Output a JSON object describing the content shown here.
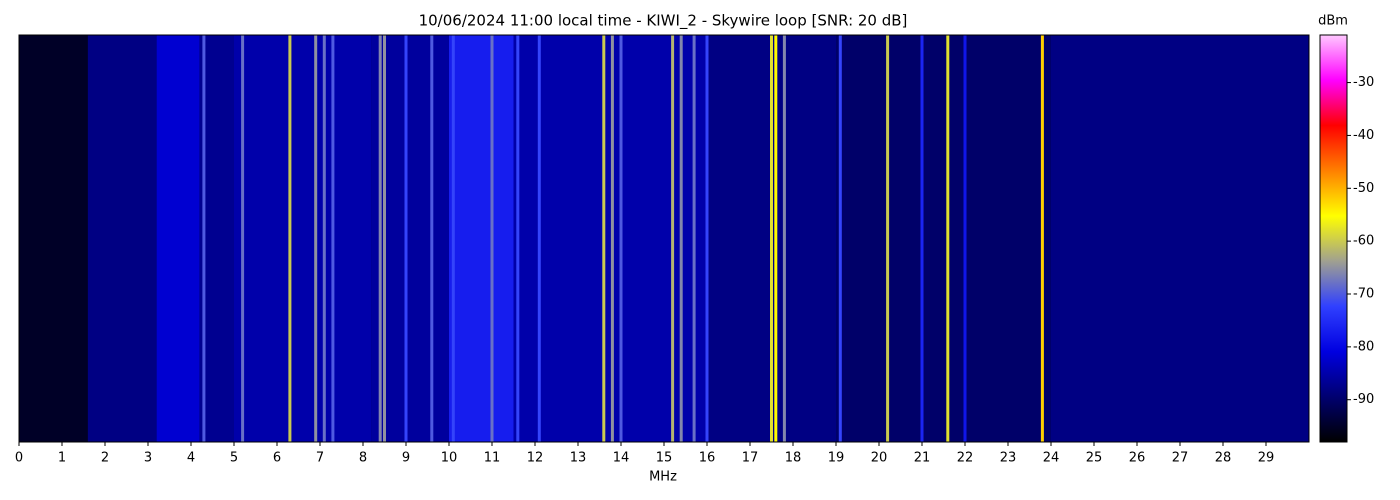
{
  "chart_data": {
    "type": "spectrogram",
    "title": "10/06/2024 11:00 local time - KIWI_2 - Skywire loop [SNR: 20 dB]",
    "x_label": "MHz",
    "colorbar_label": "dBm",
    "xlim": [
      0,
      30
    ],
    "xticks": [
      0,
      1,
      2,
      3,
      4,
      5,
      6,
      7,
      8,
      9,
      10,
      11,
      12,
      13,
      14,
      15,
      16,
      17,
      18,
      19,
      20,
      21,
      22,
      23,
      24,
      25,
      26,
      27,
      28,
      29
    ],
    "clim": [
      -98,
      -21
    ],
    "cticks": [
      -30,
      -40,
      -50,
      -60,
      -70,
      -80,
      -90
    ],
    "colormap": [
      "#000000",
      "#000070",
      "#0000e0",
      "#3040ff",
      "#a0a090",
      "#ffff00",
      "#ff8000",
      "#ff0000",
      "#ff00ff",
      "#ffc8ff"
    ],
    "noise_bins": [
      0,
      1.6,
      3.2,
      4.2,
      5.0,
      8.2,
      10.0,
      11.5,
      16.0,
      19.0,
      24.0,
      30
    ],
    "noise_values": [
      -95,
      -88,
      -82,
      -87,
      -85,
      -86,
      -77,
      -85,
      -88,
      -90,
      -88
    ],
    "carriers": {
      "x": [
        4.3,
        5.2,
        6.3,
        6.9,
        7.1,
        7.3,
        8.4,
        8.5,
        9.0,
        9.6,
        10.1,
        11.0,
        11.6,
        12.1,
        13.6,
        13.8,
        14.0,
        15.2,
        15.4,
        15.7,
        16.0,
        17.5,
        17.6,
        17.8,
        19.1,
        20.2,
        21.0,
        21.6,
        22.0,
        23.8
      ],
      "values": [
        -70,
        -68,
        -60,
        -65,
        -68,
        -70,
        -66,
        -65,
        -72,
        -70,
        -72,
        -68,
        -72,
        -72,
        -60,
        -65,
        -70,
        -62,
        -66,
        -68,
        -72,
        -58,
        -55,
        -66,
        -72,
        -60,
        -76,
        -58,
        -78,
        -52
      ]
    }
  }
}
